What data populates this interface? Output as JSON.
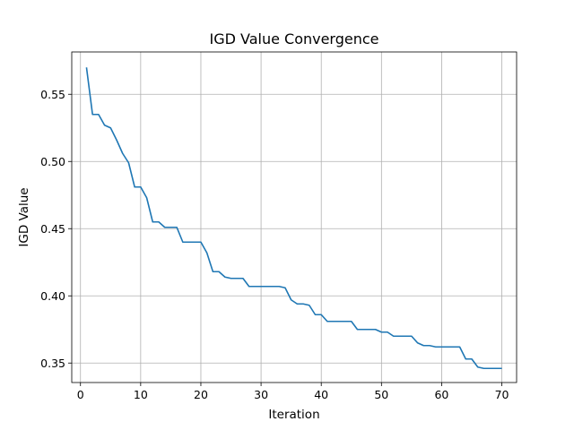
{
  "chart_data": {
    "type": "line",
    "title": "IGD Value Convergence",
    "xlabel": "Iteration",
    "ylabel": "IGD Value",
    "xlim": [
      -1.45,
      72.45
    ],
    "ylim": [
      0.3355,
      0.5815
    ],
    "xticks": [
      0,
      10,
      20,
      30,
      40,
      50,
      60,
      70
    ],
    "xtick_labels": [
      "0",
      "10",
      "20",
      "30",
      "40",
      "50",
      "60",
      "70"
    ],
    "yticks": [
      0.35,
      0.4,
      0.45,
      0.5,
      0.55
    ],
    "ytick_labels": [
      "0.35",
      "0.40",
      "0.45",
      "0.50",
      "0.55"
    ],
    "grid": true,
    "series": [
      {
        "color": "#1f77b4",
        "x": [
          1,
          2,
          3,
          4,
          5,
          6,
          7,
          8,
          9,
          10,
          11,
          12,
          13,
          14,
          15,
          16,
          17,
          18,
          19,
          20,
          21,
          22,
          23,
          24,
          25,
          26,
          27,
          28,
          29,
          30,
          31,
          32,
          33,
          34,
          35,
          36,
          37,
          38,
          39,
          40,
          41,
          42,
          43,
          44,
          45,
          46,
          47,
          48,
          49,
          50,
          51,
          52,
          53,
          54,
          55,
          56,
          57,
          58,
          59,
          60,
          61,
          62,
          63,
          64,
          65,
          66,
          67,
          68,
          69,
          70
        ],
        "values": [
          0.57,
          0.535,
          0.535,
          0.527,
          0.525,
          0.516,
          0.506,
          0.499,
          0.481,
          0.481,
          0.473,
          0.455,
          0.455,
          0.451,
          0.451,
          0.451,
          0.44,
          0.44,
          0.44,
          0.44,
          0.432,
          0.418,
          0.418,
          0.414,
          0.413,
          0.413,
          0.413,
          0.407,
          0.407,
          0.407,
          0.407,
          0.407,
          0.407,
          0.406,
          0.397,
          0.394,
          0.394,
          0.393,
          0.386,
          0.386,
          0.381,
          0.381,
          0.381,
          0.381,
          0.381,
          0.375,
          0.375,
          0.375,
          0.375,
          0.373,
          0.373,
          0.37,
          0.37,
          0.37,
          0.37,
          0.365,
          0.363,
          0.363,
          0.362,
          0.362,
          0.362,
          0.362,
          0.362,
          0.353,
          0.353,
          0.347,
          0.346,
          0.346,
          0.346,
          0.346
        ]
      }
    ]
  }
}
